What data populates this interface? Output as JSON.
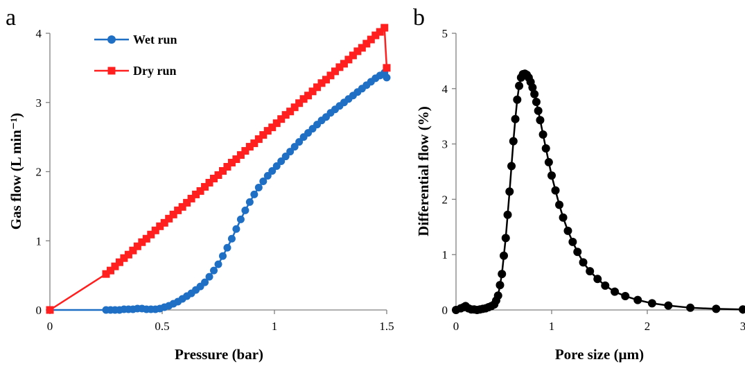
{
  "chart_data": [
    {
      "panel_label": "a",
      "type": "line",
      "xlabel": "Pressure (bar)",
      "ylabel": "Gas flow (L min⁻¹)",
      "xlim": [
        0,
        1.5
      ],
      "ylim": [
        0,
        4
      ],
      "xticks": [
        "0",
        "0.5",
        "1",
        "1.5"
      ],
      "yticks": [
        "0",
        "1",
        "2",
        "3",
        "4"
      ],
      "legend_position": "top-left",
      "grid": false,
      "series": [
        {
          "name": "Wet run",
          "color": "#1f6fc5",
          "marker": "circle",
          "x": [
            0,
            0.25,
            0.27,
            0.29,
            0.31,
            0.33,
            0.35,
            0.37,
            0.39,
            0.41,
            0.43,
            0.45,
            0.47,
            0.49,
            0.51,
            0.53,
            0.55,
            0.57,
            0.59,
            0.61,
            0.63,
            0.65,
            0.67,
            0.69,
            0.71,
            0.73,
            0.75,
            0.77,
            0.79,
            0.81,
            0.83,
            0.85,
            0.87,
            0.89,
            0.91,
            0.93,
            0.95,
            0.97,
            0.99,
            1.01,
            1.03,
            1.05,
            1.07,
            1.09,
            1.11,
            1.13,
            1.15,
            1.17,
            1.19,
            1.21,
            1.23,
            1.25,
            1.27,
            1.29,
            1.31,
            1.33,
            1.35,
            1.37,
            1.39,
            1.41,
            1.43,
            1.45,
            1.47,
            1.49,
            1.5
          ],
          "values": [
            0,
            0,
            0,
            0,
            0,
            0.01,
            0.01,
            0.01,
            0.02,
            0.02,
            0.01,
            0.01,
            0.01,
            0.02,
            0.04,
            0.06,
            0.09,
            0.12,
            0.16,
            0.2,
            0.24,
            0.29,
            0.34,
            0.4,
            0.48,
            0.57,
            0.66,
            0.78,
            0.9,
            1.03,
            1.17,
            1.31,
            1.44,
            1.56,
            1.67,
            1.77,
            1.86,
            1.94,
            2.01,
            2.08,
            2.15,
            2.22,
            2.29,
            2.36,
            2.43,
            2.5,
            2.56,
            2.62,
            2.68,
            2.74,
            2.79,
            2.85,
            2.9,
            2.95,
            3.0,
            3.05,
            3.1,
            3.15,
            3.2,
            3.25,
            3.3,
            3.35,
            3.39,
            3.43,
            3.36
          ]
        },
        {
          "name": "Dry run",
          "color": "#ff1f1f",
          "marker": "square",
          "x": [
            0,
            0.25,
            0.27,
            0.29,
            0.31,
            0.33,
            0.35,
            0.37,
            0.39,
            0.41,
            0.43,
            0.45,
            0.47,
            0.49,
            0.51,
            0.53,
            0.55,
            0.57,
            0.59,
            0.61,
            0.63,
            0.65,
            0.67,
            0.69,
            0.71,
            0.73,
            0.75,
            0.77,
            0.79,
            0.81,
            0.83,
            0.85,
            0.87,
            0.89,
            0.91,
            0.93,
            0.95,
            0.97,
            0.99,
            1.01,
            1.03,
            1.05,
            1.07,
            1.09,
            1.11,
            1.13,
            1.15,
            1.17,
            1.19,
            1.21,
            1.23,
            1.25,
            1.27,
            1.29,
            1.31,
            1.33,
            1.35,
            1.37,
            1.39,
            1.41,
            1.43,
            1.45,
            1.47,
            1.49,
            1.5
          ],
          "values": [
            0,
            0.52,
            0.57,
            0.63,
            0.69,
            0.75,
            0.8,
            0.86,
            0.92,
            0.98,
            1.03,
            1.09,
            1.15,
            1.21,
            1.26,
            1.32,
            1.38,
            1.44,
            1.49,
            1.55,
            1.61,
            1.67,
            1.72,
            1.78,
            1.84,
            1.9,
            1.95,
            2.01,
            2.07,
            2.13,
            2.18,
            2.24,
            2.3,
            2.36,
            2.41,
            2.47,
            2.53,
            2.59,
            2.64,
            2.7,
            2.76,
            2.82,
            2.87,
            2.93,
            2.99,
            3.05,
            3.1,
            3.16,
            3.22,
            3.28,
            3.33,
            3.39,
            3.45,
            3.51,
            3.56,
            3.62,
            3.68,
            3.74,
            3.79,
            3.85,
            3.91,
            3.97,
            4.02,
            4.08,
            3.5
          ]
        }
      ]
    },
    {
      "panel_label": "b",
      "type": "line",
      "xlabel": "Pore size (µm)",
      "ylabel": "Differential flow (%)",
      "xlim": [
        0,
        3
      ],
      "ylim": [
        0,
        5
      ],
      "xticks": [
        "0",
        "1",
        "2",
        "3"
      ],
      "yticks": [
        "0",
        "1",
        "2",
        "3",
        "4",
        "5"
      ],
      "grid": false,
      "series": [
        {
          "color": "#000000",
          "marker": "circle",
          "x": [
            0.0,
            0.05,
            0.08,
            0.1,
            0.13,
            0.16,
            0.19,
            0.22,
            0.25,
            0.28,
            0.31,
            0.34,
            0.37,
            0.4,
            0.42,
            0.44,
            0.46,
            0.48,
            0.5,
            0.52,
            0.54,
            0.56,
            0.58,
            0.6,
            0.62,
            0.64,
            0.66,
            0.68,
            0.7,
            0.72,
            0.74,
            0.76,
            0.78,
            0.8,
            0.82,
            0.84,
            0.86,
            0.88,
            0.91,
            0.94,
            0.97,
            1.0,
            1.04,
            1.08,
            1.12,
            1.17,
            1.22,
            1.27,
            1.33,
            1.4,
            1.48,
            1.56,
            1.66,
            1.77,
            1.9,
            2.05,
            2.22,
            2.45,
            2.72,
            3.0
          ],
          "values": [
            0.0,
            0.03,
            0.05,
            0.07,
            0.03,
            0.01,
            0.01,
            0.0,
            0.01,
            0.02,
            0.03,
            0.05,
            0.07,
            0.1,
            0.17,
            0.26,
            0.45,
            0.65,
            0.98,
            1.3,
            1.72,
            2.14,
            2.6,
            3.05,
            3.45,
            3.8,
            4.05,
            4.2,
            4.26,
            4.27,
            4.25,
            4.2,
            4.12,
            4.02,
            3.9,
            3.76,
            3.6,
            3.43,
            3.17,
            2.92,
            2.67,
            2.43,
            2.16,
            1.9,
            1.67,
            1.43,
            1.23,
            1.05,
            0.86,
            0.7,
            0.56,
            0.44,
            0.33,
            0.25,
            0.18,
            0.12,
            0.08,
            0.04,
            0.02,
            0.01
          ]
        }
      ]
    }
  ]
}
